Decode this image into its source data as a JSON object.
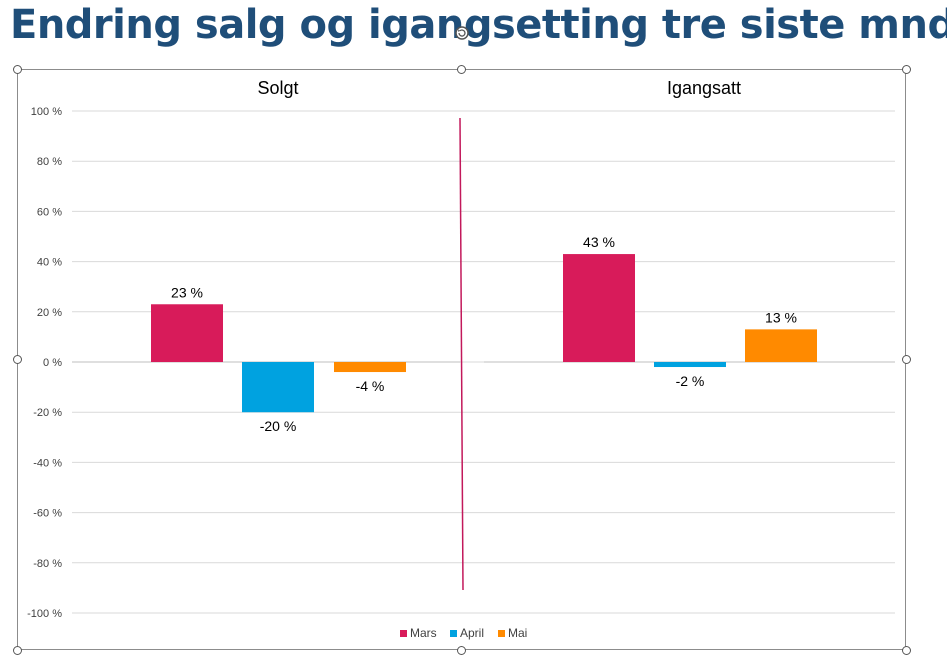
{
  "slide": {
    "title": "Endring salg og igangsetting tre siste mnd."
  },
  "colors": {
    "title": "#1f4e79",
    "Mars": "#d81b5a",
    "April": "#00a2e0",
    "Mai": "#ff8a00",
    "divider": "#c2185b",
    "grid": "#d9d9d9"
  },
  "chart_data": [
    {
      "type": "bar",
      "title": "Solgt",
      "categories": [
        "Mars",
        "April",
        "Mai"
      ],
      "values": [
        23,
        -20,
        -4
      ],
      "data_labels": [
        "23 %",
        "-20 %",
        "-4 %"
      ],
      "ylim": [
        -100,
        100
      ],
      "yticks": [
        100,
        80,
        60,
        40,
        20,
        0,
        -20,
        -40,
        -60,
        -80,
        -100
      ],
      "ytick_labels": [
        "100 %",
        "80 %",
        "60 %",
        "40 %",
        "20 %",
        "0 %",
        "-20 %",
        "-40 %",
        "-60 %",
        "-80 %",
        "-100 %"
      ],
      "grid": true
    },
    {
      "type": "bar",
      "title": "Igangsatt",
      "categories": [
        "Mars",
        "April",
        "Mai"
      ],
      "values": [
        43,
        -2,
        13
      ],
      "data_labels": [
        "43 %",
        "-2 %",
        "13 %"
      ],
      "ylim": [
        -100,
        100
      ],
      "grid": true
    }
  ],
  "legend": {
    "position": "bottom",
    "items": [
      "Mars",
      "April",
      "Mai"
    ]
  }
}
